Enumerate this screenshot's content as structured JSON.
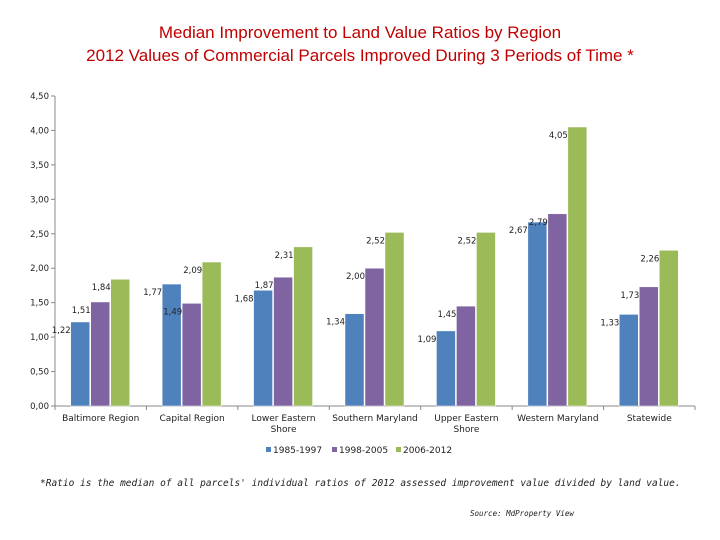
{
  "chart_data": {
    "type": "bar",
    "title": "Median Improvement to Land Value Ratios by Region",
    "subtitle": "2012 Values of Commercial Parcels Improved During 3 Periods of Time *",
    "categories": [
      [
        "Baltimore Region"
      ],
      [
        "Capital Region"
      ],
      [
        "Lower Eastern",
        "Shore"
      ],
      [
        "Southern Maryland"
      ],
      [
        "Upper Eastern",
        "Shore"
      ],
      [
        "Western Maryland"
      ],
      [
        "Statewide"
      ]
    ],
    "series": [
      {
        "name": "1985-1997",
        "color": "#4f81bd",
        "values": [
          1.22,
          1.77,
          1.68,
          1.34,
          1.09,
          2.67,
          1.33
        ],
        "labels": [
          "1,22",
          "1,77",
          "1,68",
          "1,34",
          "1,09",
          "2,67",
          "1,33"
        ]
      },
      {
        "name": "1998-2005",
        "color": "#8064a2",
        "values": [
          1.51,
          1.49,
          1.87,
          2.0,
          1.45,
          2.79,
          1.73
        ],
        "labels": [
          "1,51",
          "1,49",
          "1,87",
          "2,00",
          "1,45",
          "2,79",
          "1,73"
        ]
      },
      {
        "name": "2006-2012",
        "color": "#9bbb59",
        "values": [
          1.84,
          2.09,
          2.31,
          2.52,
          2.52,
          4.05,
          2.26
        ],
        "labels": [
          "1,84",
          "2,09",
          "2,31",
          "2,52",
          "2,52",
          "4,05",
          "2,26"
        ]
      }
    ],
    "ylim": [
      0,
      4.5
    ],
    "yticks": [
      0,
      0.5,
      1.0,
      1.5,
      2.0,
      2.5,
      3.0,
      3.5,
      4.0,
      4.5
    ],
    "ytick_labels": [
      "0,00",
      "0,50",
      "1,00",
      "1,50",
      "2,00",
      "2,50",
      "3,00",
      "3,50",
      "4,00",
      "4,50"
    ],
    "grid": false,
    "legend": "bottom"
  },
  "footnote": "*Ratio is the median of all parcels' individual ratios of 2012 assessed improvement value divided by land value.",
  "source": "Source: MdProperty View"
}
